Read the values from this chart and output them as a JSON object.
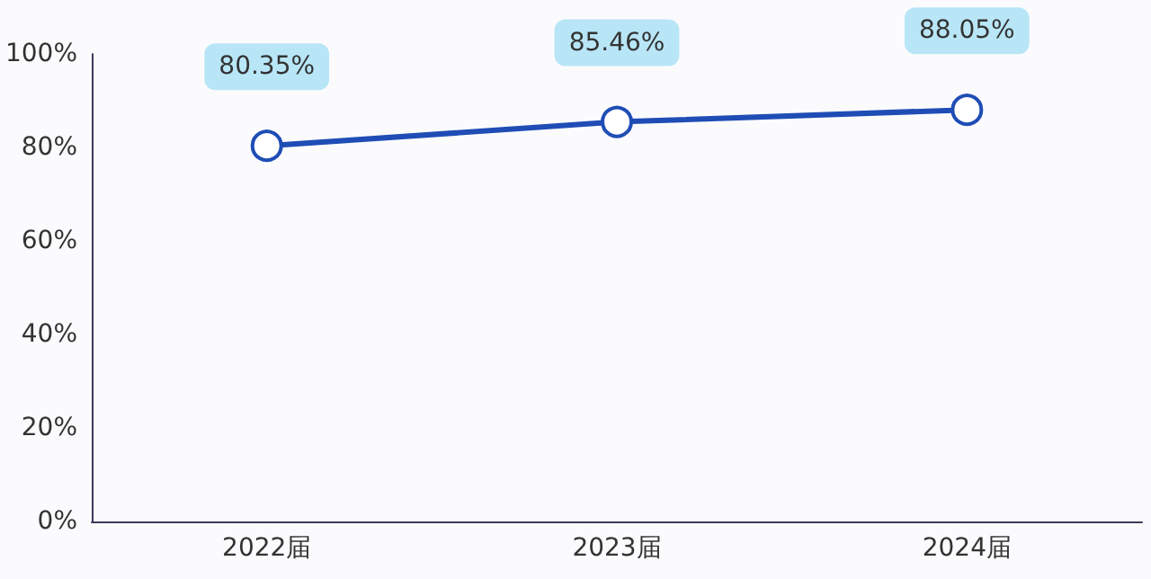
{
  "chart_data": {
    "type": "line",
    "categories": [
      "2022届",
      "2023届",
      "2024届"
    ],
    "series": [
      {
        "color": "#1f4db5",
        "values": [
          80.35,
          85.46,
          88.05
        ],
        "value_labels": [
          "80.35%",
          "85.46%",
          "88.05%"
        ]
      }
    ],
    "ylim": [
      0,
      100
    ],
    "yticks": [
      {
        "value": 0,
        "label": "0%"
      },
      {
        "value": 20,
        "label": "20%"
      },
      {
        "value": 40,
        "label": "40%"
      },
      {
        "value": 60,
        "label": "60%"
      },
      {
        "value": 80,
        "label": "80%"
      },
      {
        "value": 100,
        "label": "100%"
      }
    ],
    "grid": false,
    "marker": "circle",
    "line_style": "solid"
  }
}
